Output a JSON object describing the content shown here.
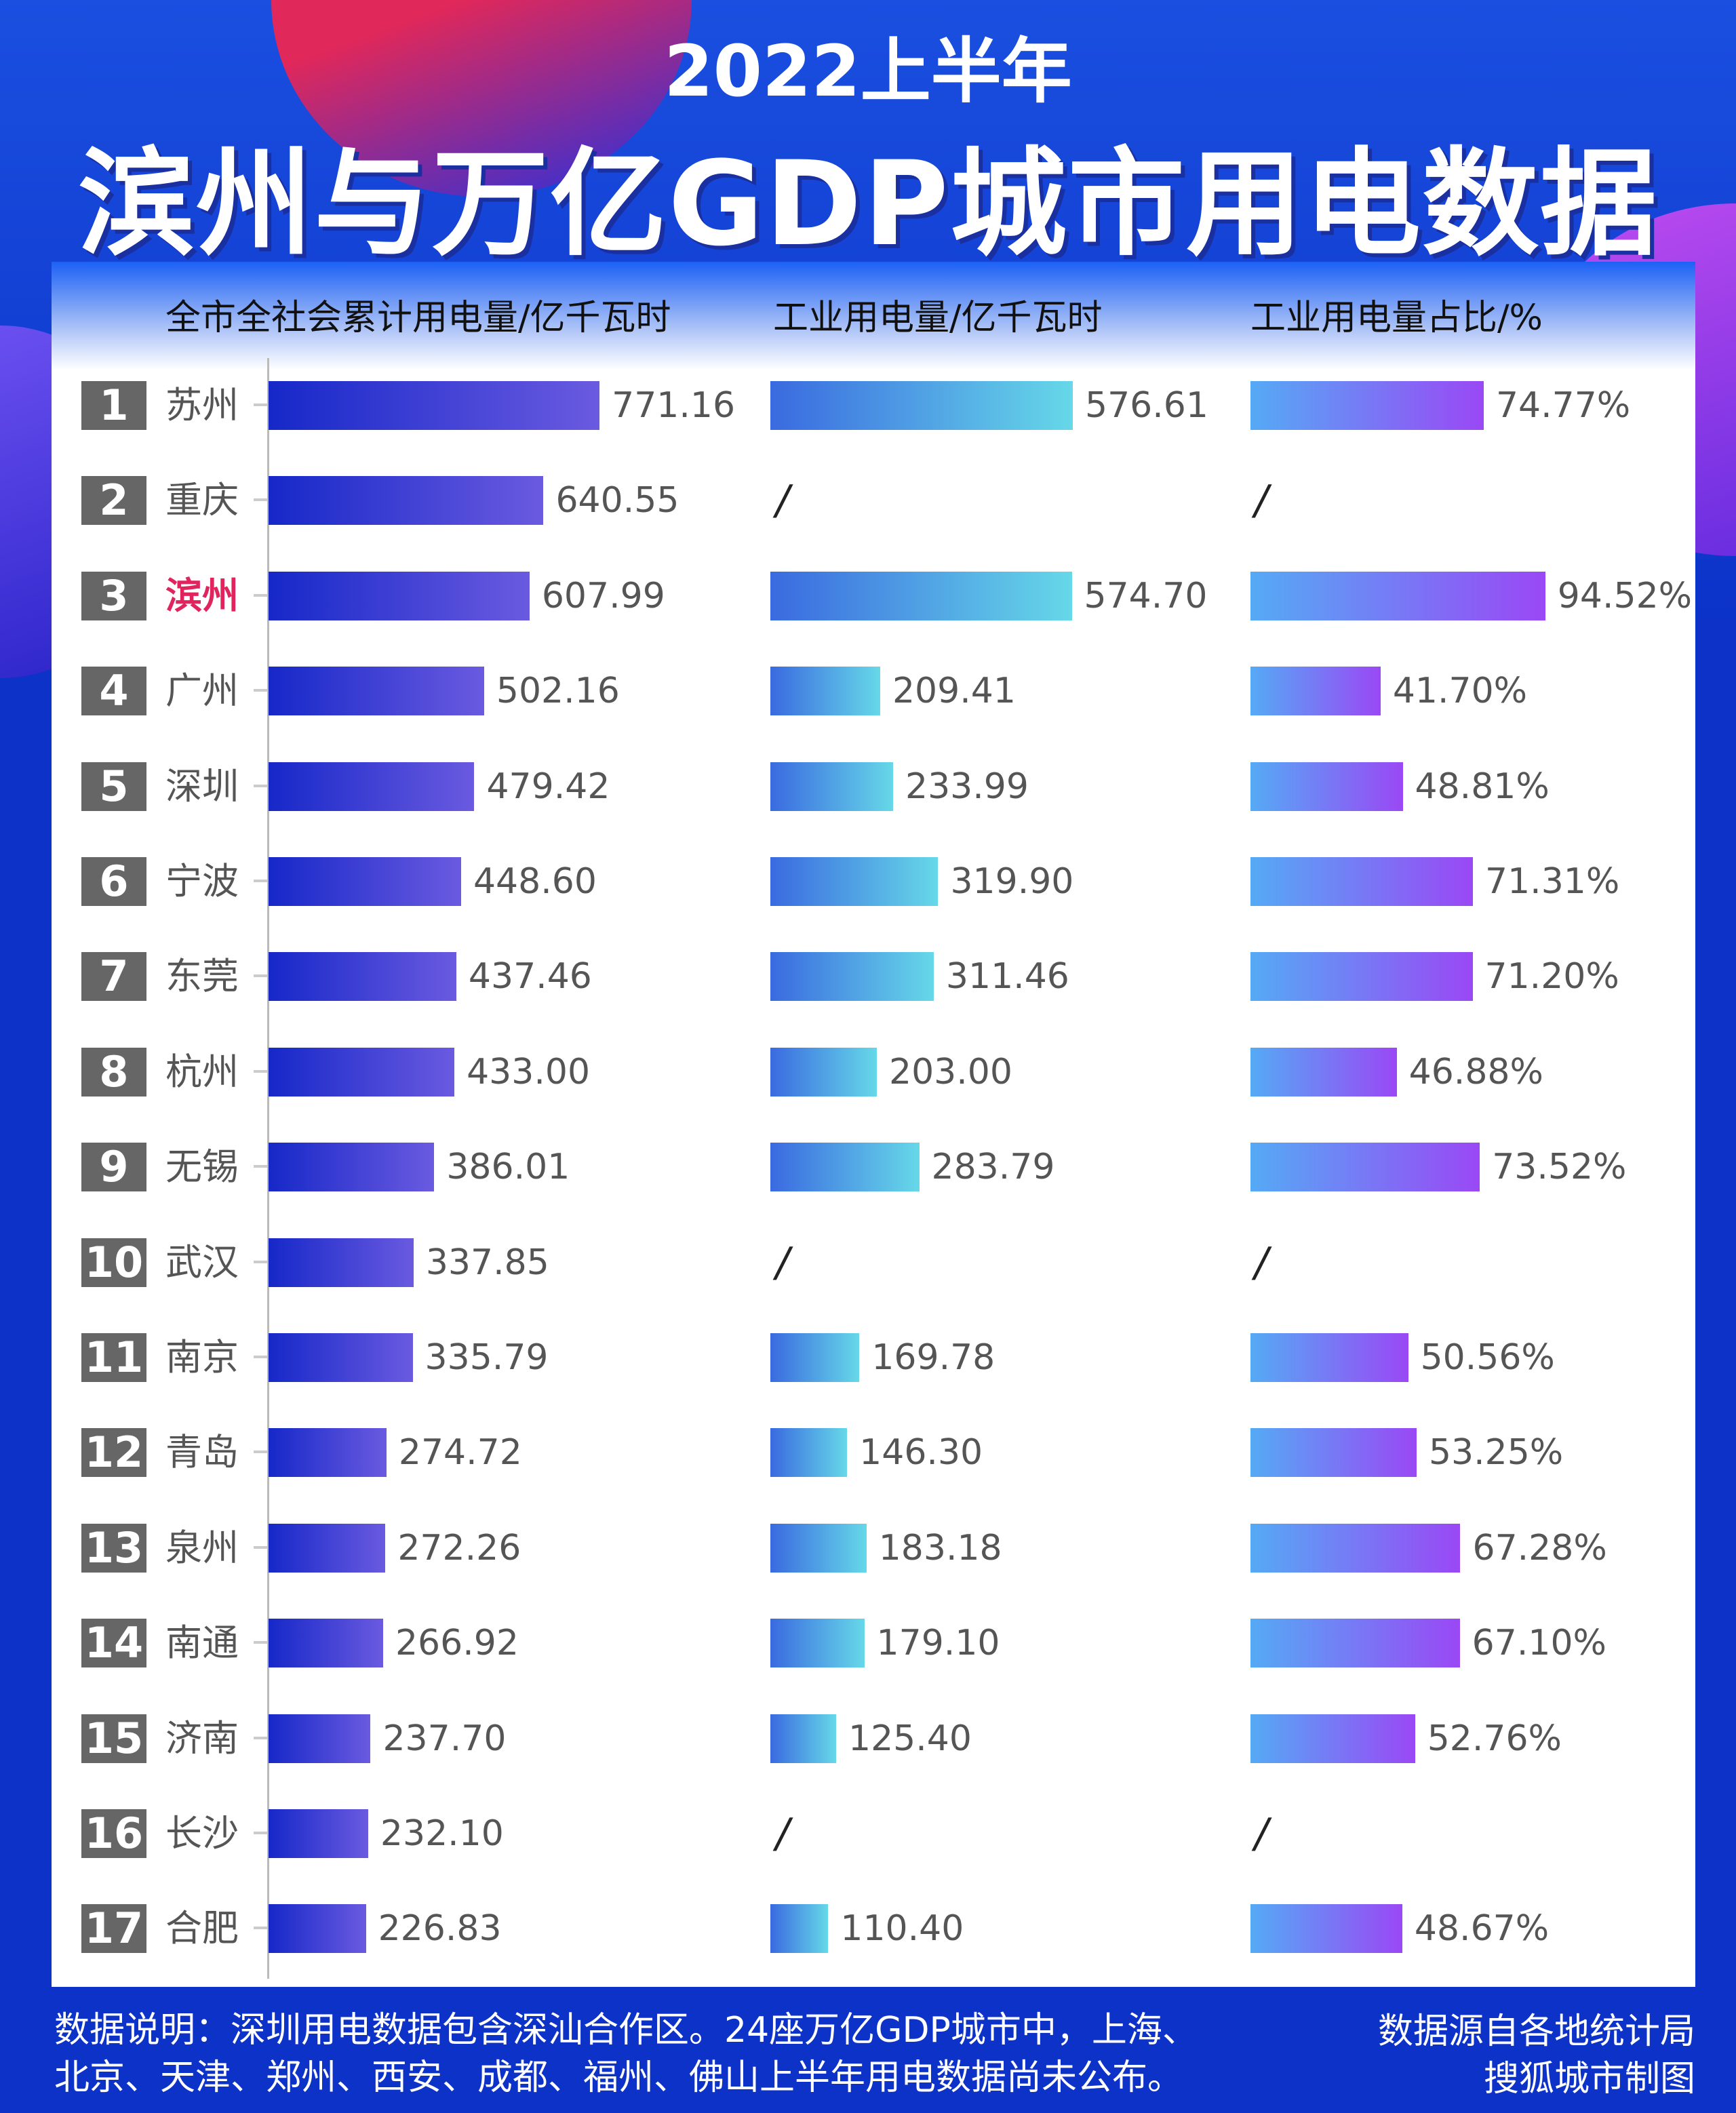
{
  "title": {
    "line1": "2022上半年",
    "line2": "滨州与万亿GDP城市用电数据"
  },
  "chart_data": {
    "type": "bar",
    "headers": [
      "全市全社会累计用电量/亿千瓦时",
      "工业用电量/亿千瓦时",
      "工业用电量占比/%"
    ],
    "highlight_color": "#e0245e",
    "highlight_city": "滨州",
    "rows": [
      {
        "rank": "1",
        "city": "苏州",
        "total": "771.16",
        "industrial": "576.61",
        "share": "74.77%"
      },
      {
        "rank": "2",
        "city": "重庆",
        "total": "640.55",
        "industrial": "/",
        "share": "/"
      },
      {
        "rank": "3",
        "city": "滨州",
        "total": "607.99",
        "industrial": "574.70",
        "share": "94.52%"
      },
      {
        "rank": "4",
        "city": "广州",
        "total": "502.16",
        "industrial": "209.41",
        "share": "41.70%"
      },
      {
        "rank": "5",
        "city": "深圳",
        "total": "479.42",
        "industrial": "233.99",
        "share": "48.81%"
      },
      {
        "rank": "6",
        "city": "宁波",
        "total": "448.60",
        "industrial": "319.90",
        "share": "71.31%"
      },
      {
        "rank": "7",
        "city": "东莞",
        "total": "437.46",
        "industrial": "311.46",
        "share": "71.20%"
      },
      {
        "rank": "8",
        "city": "杭州",
        "total": "433.00",
        "industrial": "203.00",
        "share": "46.88%"
      },
      {
        "rank": "9",
        "city": "无锡",
        "total": "386.01",
        "industrial": "283.79",
        "share": "73.52%"
      },
      {
        "rank": "10",
        "city": "武汉",
        "total": "337.85",
        "industrial": "/",
        "share": "/"
      },
      {
        "rank": "11",
        "city": "南京",
        "total": "335.79",
        "industrial": "169.78",
        "share": "50.56%"
      },
      {
        "rank": "12",
        "city": "青岛",
        "total": "274.72",
        "industrial": "146.30",
        "share": "53.25%"
      },
      {
        "rank": "13",
        "city": "泉州",
        "total": "272.26",
        "industrial": "183.18",
        "share": "67.28%"
      },
      {
        "rank": "14",
        "city": "南通",
        "total": "266.92",
        "industrial": "179.10",
        "share": "67.10%"
      },
      {
        "rank": "15",
        "city": "济南",
        "total": "237.70",
        "industrial": "125.40",
        "share": "52.76%"
      },
      {
        "rank": "16",
        "city": "长沙",
        "total": "232.10",
        "industrial": "/",
        "share": "/"
      },
      {
        "rank": "17",
        "city": "合肥",
        "total": "226.83",
        "industrial": "110.40",
        "share": "48.67%"
      }
    ]
  },
  "footer": {
    "note1": "数据说明：深圳用电数据包含深汕合作区。24座万亿GDP城市中，上海、",
    "note2": "北京、天津、郑州、西安、成都、福州、佛山上半年用电数据尚未公布。",
    "source1": "数据源自各地统计局",
    "source2": "搜狐城市制图"
  }
}
